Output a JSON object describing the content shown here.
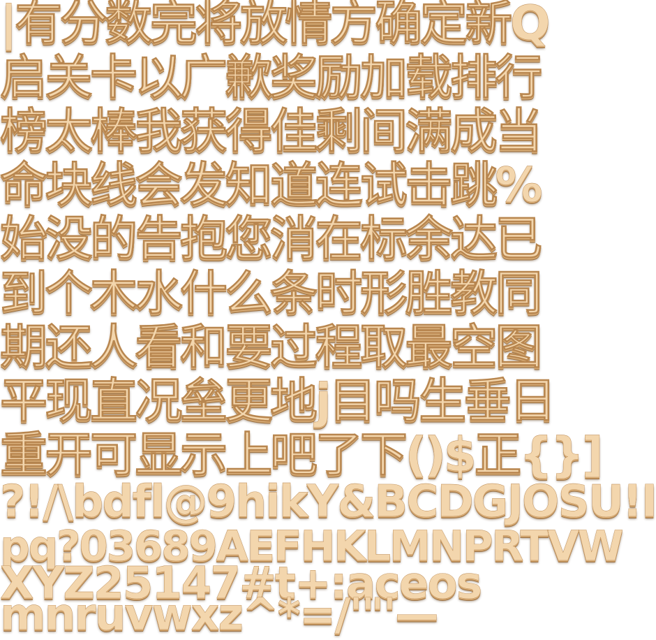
{
  "rows": [
    "|有分数完将放情方确定新Q",
    "启关卡以广歉奖励加载排行",
    "榜太棒我获得佳剩间满成当",
    "命块线会发知道连试击跳%",
    "始没的告抱您消在标余达已",
    "到个木水什么条时形胜教同",
    "期还人看和要过程取最空图",
    "平现直况垒更地j目吗生垂日",
    "重开可显示上吧了下()$正{}]",
    "?!/\\bdfl@9hikY&BCDGJOSU!I",
    "pq?03689AEFHKLMNPRTVW",
    "XYZ25147#t+:aceos",
    "mnruvwxz^*=/'\"'—"
  ]
}
